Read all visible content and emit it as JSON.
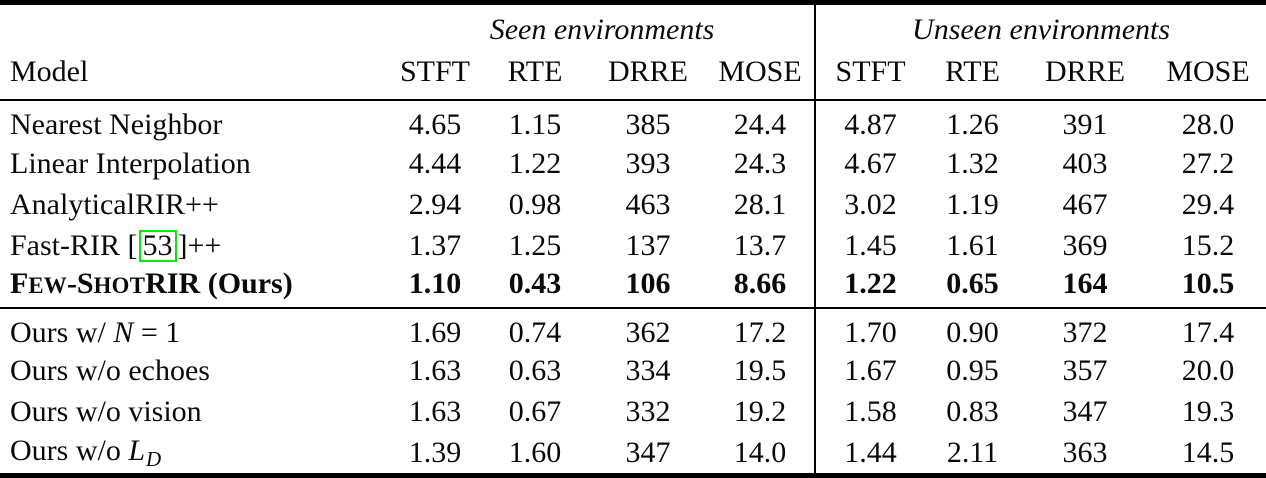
{
  "colors": {
    "background": "#ffffff",
    "text": "#0a0a0a",
    "rule": "#000000",
    "citation_box": "#00ee00"
  },
  "table": {
    "header": {
      "model_label": "Model",
      "groups": [
        {
          "label": "Seen environments"
        },
        {
          "label": "Unseen environments"
        }
      ],
      "metrics": [
        "STFT",
        "RTE",
        "DRRE",
        "MOSE"
      ]
    },
    "sections": [
      {
        "name": "baselines",
        "rows": [
          {
            "model_parts": [
              {
                "t": "Nearest Neighbor"
              }
            ],
            "bold": false,
            "values": [
              "4.65",
              "1.15",
              "385",
              "24.4",
              "4.87",
              "1.26",
              "391",
              "28.0"
            ]
          },
          {
            "model_parts": [
              {
                "t": "Linear Interpolation"
              }
            ],
            "bold": false,
            "values": [
              "4.44",
              "1.22",
              "393",
              "24.3",
              "4.67",
              "1.32",
              "403",
              "27.2"
            ]
          },
          {
            "model_parts": [
              {
                "t": "AnalyticalRIR++"
              }
            ],
            "bold": false,
            "values": [
              "2.94",
              "0.98",
              "463",
              "28.1",
              "3.02",
              "1.19",
              "467",
              "29.4"
            ]
          },
          {
            "model_parts": [
              {
                "t": "Fast-RIR ["
              },
              {
                "t": "53",
                "s": "cite"
              },
              {
                "t": "]++"
              }
            ],
            "bold": false,
            "values": [
              "1.37",
              "1.25",
              "137",
              "13.7",
              "1.45",
              "1.61",
              "369",
              "15.2"
            ]
          },
          {
            "model_parts": [
              {
                "t": "F"
              },
              {
                "t": "EW",
                "s": "sc"
              },
              {
                "t": "-S"
              },
              {
                "t": "HOT",
                "s": "sc"
              },
              {
                "t": "RIR (Ours)"
              }
            ],
            "bold": true,
            "values": [
              "1.10",
              "0.43",
              "106",
              "8.66",
              "1.22",
              "0.65",
              "164",
              "10.5"
            ]
          }
        ]
      },
      {
        "name": "ablations",
        "rows": [
          {
            "model_parts": [
              {
                "t": "Ours w/ "
              },
              {
                "t": "N",
                "s": "it"
              },
              {
                "t": " = 1"
              }
            ],
            "bold": false,
            "values": [
              "1.69",
              "0.74",
              "362",
              "17.2",
              "1.70",
              "0.90",
              "372",
              "17.4"
            ]
          },
          {
            "model_parts": [
              {
                "t": "Ours w/o echoes"
              }
            ],
            "bold": false,
            "values": [
              "1.63",
              "0.63",
              "334",
              "19.5",
              "1.67",
              "0.95",
              "357",
              "20.0"
            ]
          },
          {
            "model_parts": [
              {
                "t": "Ours w/o vision"
              }
            ],
            "bold": false,
            "values": [
              "1.63",
              "0.67",
              "332",
              "19.2",
              "1.58",
              "0.83",
              "347",
              "19.3"
            ]
          },
          {
            "model_parts": [
              {
                "t": "Ours w/o "
              },
              {
                "t": "L",
                "s": "it"
              },
              {
                "t": "D",
                "s": "sub"
              }
            ],
            "bold": false,
            "values": [
              "1.39",
              "1.60",
              "347",
              "14.0",
              "1.44",
              "2.11",
              "363",
              "14.5"
            ]
          }
        ]
      }
    ]
  }
}
